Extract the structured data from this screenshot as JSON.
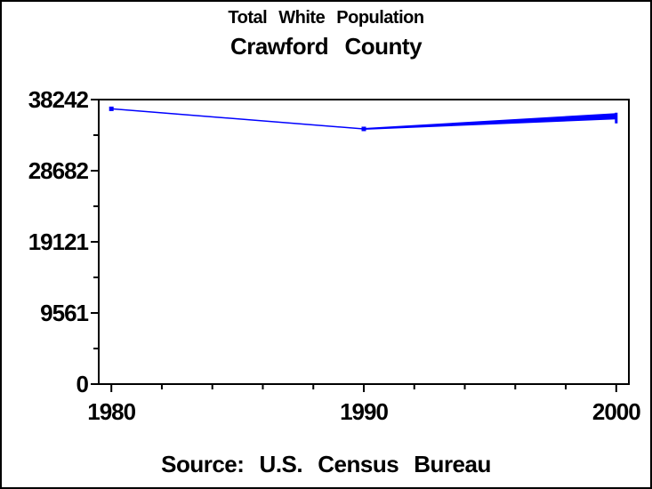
{
  "header": {
    "title": "Total White Population",
    "subtitle": "Crawford County"
  },
  "footer": {
    "source": "Source: U.S. Census Bureau"
  },
  "colors": {
    "line": "#0000FF",
    "axis": "#000000",
    "text": "#000000",
    "background": "#FFFFFF",
    "border": "#000000"
  },
  "chart_data": {
    "type": "line",
    "title": "Total White Population",
    "subtitle": "Crawford County",
    "source_note": "Source: U.S. Census Bureau",
    "x": [
      1980,
      1990,
      2000
    ],
    "x_tick_labels": [
      "1980",
      "1990",
      "2000"
    ],
    "x_minor_tick_years": [
      1982,
      1984,
      1986,
      1988,
      1992,
      1994,
      1996,
      1998
    ],
    "xlim": [
      1979.5,
      2000.5
    ],
    "y_ticks": [
      0,
      9561,
      19121,
      28682,
      38242
    ],
    "y_tick_labels": [
      "0",
      "9561",
      "19121",
      "28682",
      "38242"
    ],
    "ylim": [
      0,
      38242
    ],
    "grid": false,
    "legend": "none",
    "xlabel": "",
    "ylabel": "",
    "series": [
      {
        "name": "Total White Population",
        "values": [
          37000,
          34300,
          36000
        ],
        "color": "#0000FF",
        "marker": "square",
        "segment_widths": [
          1.5,
          [
            2,
            7
          ]
        ]
      }
    ]
  }
}
